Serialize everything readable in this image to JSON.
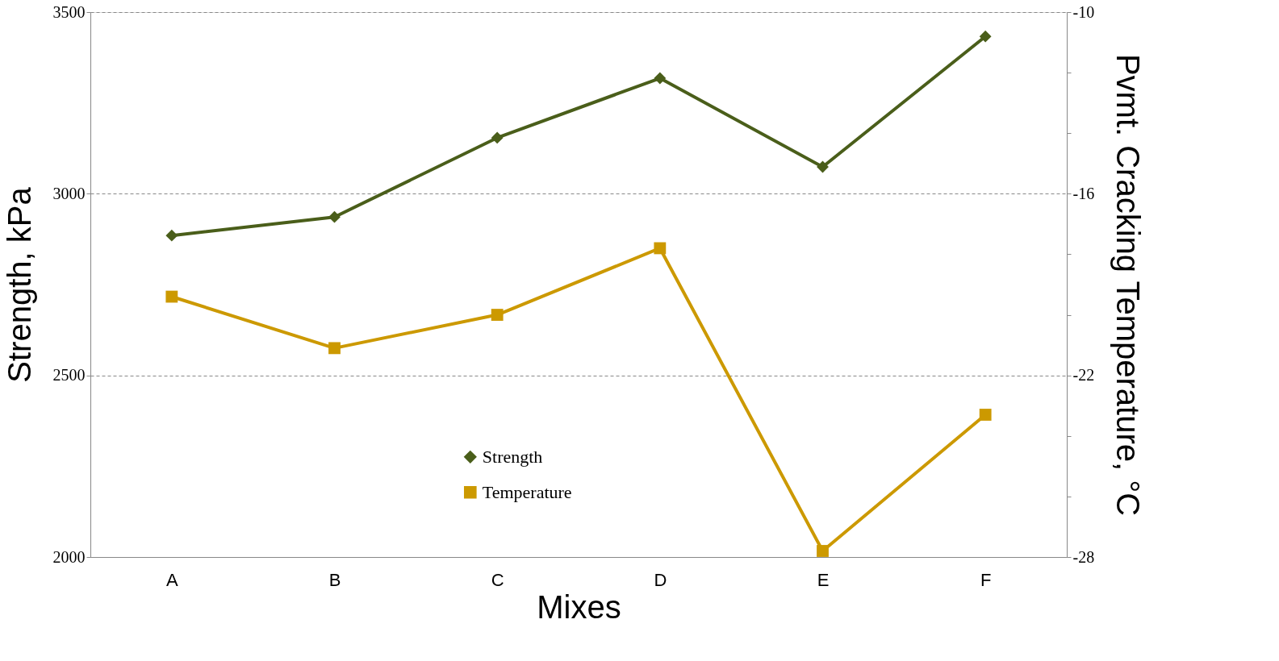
{
  "chart_data": {
    "type": "line",
    "xlabel": "Mixes",
    "ylabel": "Strength, kPa",
    "y2label": "Pvmt. Cracking Temperature, °C",
    "categories": [
      "A",
      "B",
      "C",
      "D",
      "E",
      "F"
    ],
    "series": [
      {
        "name": "Strength",
        "color": "#4a5e1a",
        "marker": "diamond",
        "values": [
          2885,
          2936,
          3154,
          3318,
          3074,
          3433
        ]
      },
      {
        "name": "Temperature",
        "color": "#cc9900",
        "marker": "square",
        "axis": "y2",
        "values": [
          -19.4,
          -21.1,
          -20.0,
          -17.8,
          -27.8,
          -23.3
        ]
      }
    ],
    "ylim": [
      2000,
      3500
    ],
    "yticks": [
      2000,
      2500,
      3000,
      3500
    ],
    "y2lim": [
      -28,
      -10
    ],
    "y2ticks": [
      -28,
      {
        "value": -26,
        "label": null
      },
      {
        "value": -24,
        "label": null
      },
      -22,
      {
        "value": -20,
        "label": null
      },
      {
        "value": -18,
        "label": null
      },
      -16,
      {
        "value": -14,
        "label": null
      },
      {
        "value": -12,
        "label": null
      },
      -10
    ],
    "grid": "y",
    "legend": "bottom",
    "line_style": "solid"
  }
}
